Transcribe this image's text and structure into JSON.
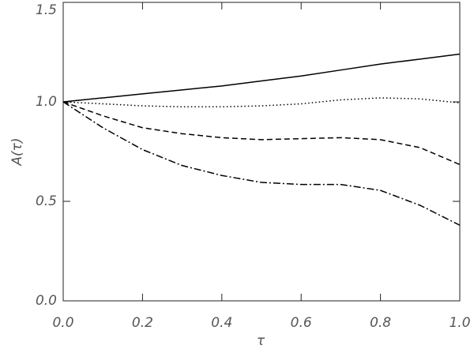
{
  "chart_data": {
    "type": "line",
    "x_label": "τ",
    "y_label": "A(τ)",
    "x": [
      0,
      0.1,
      0.2,
      0.3,
      0.4,
      0.5,
      0.6,
      0.7,
      0.8,
      0.9,
      1.0
    ],
    "series": [
      {
        "color": "#000000",
        "dash": "solid",
        "values": [
          1.0,
          1.02,
          1.04,
          1.06,
          1.08,
          1.105,
          1.13,
          1.16,
          1.19,
          1.215,
          1.24
        ]
      },
      {
        "color": "#000000",
        "dash": "dotted",
        "values": [
          1.0,
          0.99,
          0.98,
          0.975,
          0.975,
          0.98,
          0.99,
          1.01,
          1.02,
          1.015,
          0.995
        ]
      },
      {
        "color": "#000000",
        "dash": "dashed",
        "values": [
          1.0,
          0.93,
          0.87,
          0.84,
          0.82,
          0.81,
          0.815,
          0.82,
          0.81,
          0.77,
          0.685
        ]
      },
      {
        "color": "#000000",
        "dash": "dashdot",
        "values": [
          1.0,
          0.87,
          0.76,
          0.68,
          0.63,
          0.595,
          0.585,
          0.585,
          0.555,
          0.48,
          0.38
        ]
      }
    ],
    "xlim": [
      0,
      1.0
    ],
    "xticks": [
      {
        "value": 0,
        "label": "0.0"
      },
      0.2,
      0.4,
      0.6,
      0.8,
      {
        "value": 1.0,
        "label": "1.0"
      }
    ],
    "ylim": [
      0,
      1.5
    ],
    "yticks": [
      {
        "value": 0,
        "label": "0.0"
      },
      0.5,
      {
        "value": 1.0,
        "label": "1.0"
      },
      {
        "value": 1.5,
        "label": "1.5"
      }
    ]
  }
}
